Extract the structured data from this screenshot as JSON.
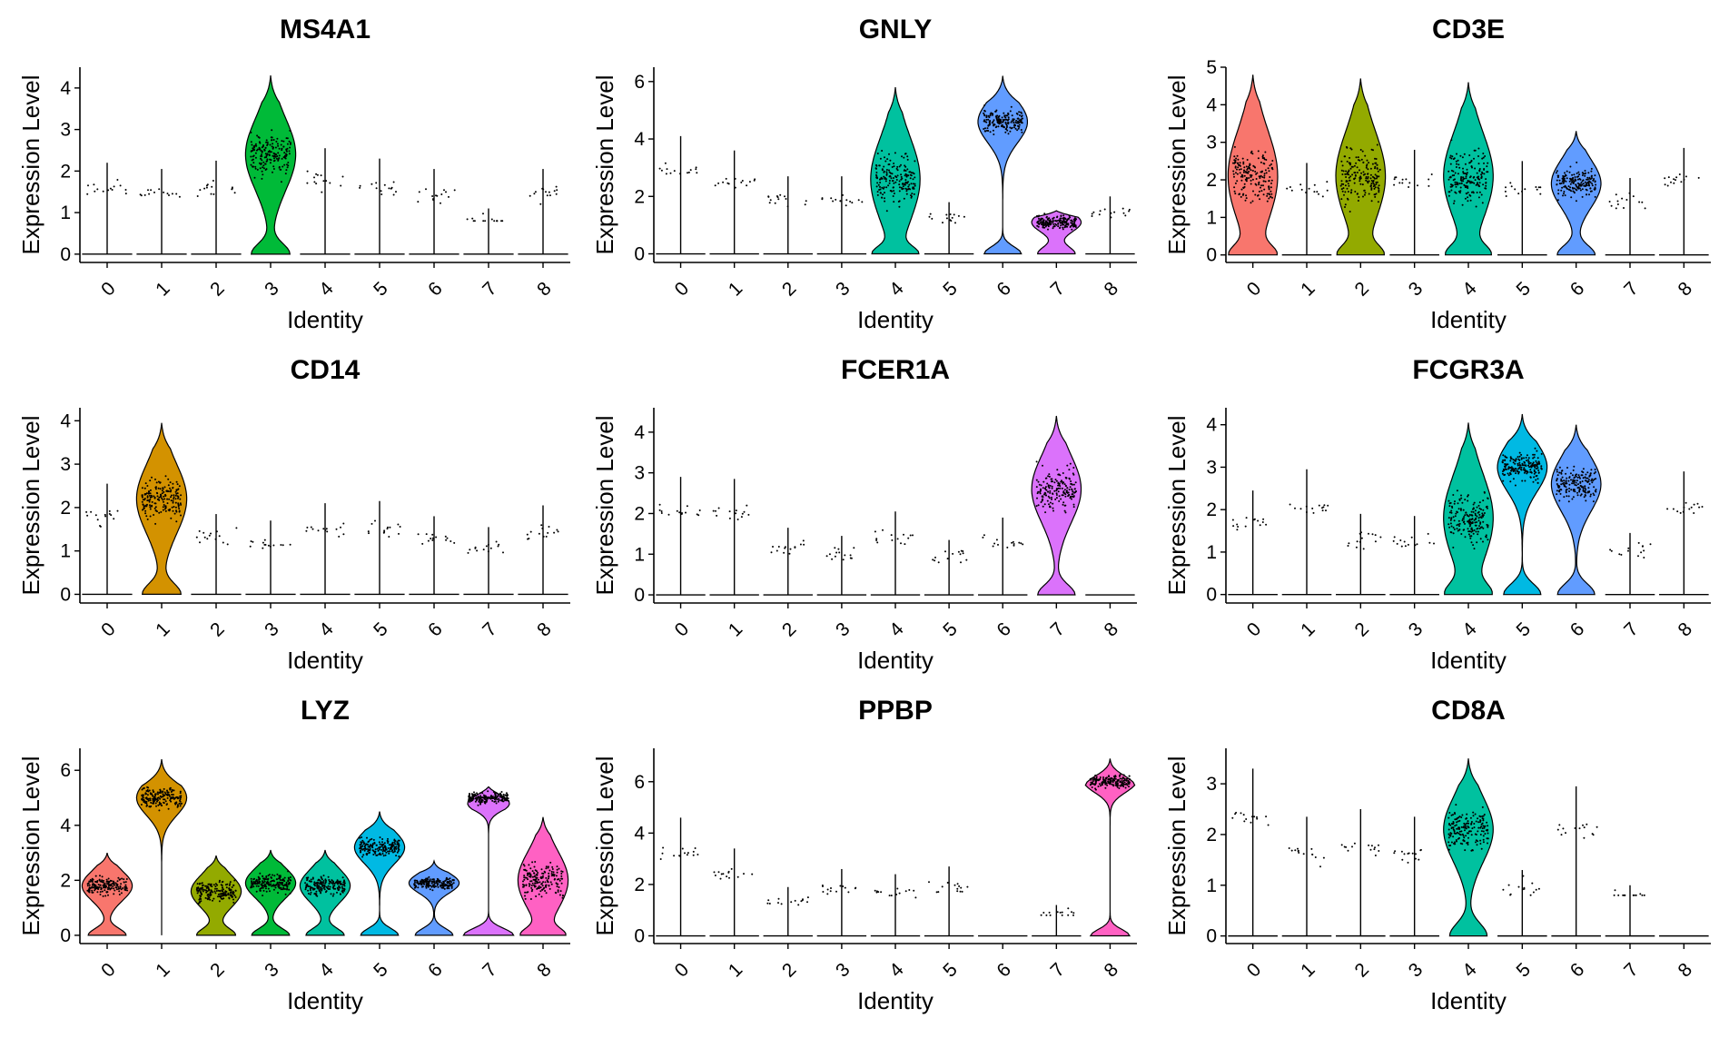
{
  "chart_data": [
    {
      "type": "violin",
      "title": "MS4A1",
      "xlabel": "Identity",
      "ylabel": "Expression Level",
      "categories": [
        "0",
        "1",
        "2",
        "3",
        "4",
        "5",
        "6",
        "7",
        "8"
      ],
      "yticks": [
        0,
        1,
        2,
        3,
        4
      ],
      "ylim": [
        -0.2,
        4.5
      ],
      "max_values": [
        2.2,
        2.05,
        2.25,
        4.3,
        2.55,
        2.3,
        2.05,
        1.1,
        2.05
      ],
      "median_values": [
        0,
        0,
        0,
        2.4,
        0,
        0,
        0,
        0,
        0
      ],
      "dense": [
        3
      ]
    },
    {
      "type": "violin",
      "title": "GNLY",
      "xlabel": "Identity",
      "ylabel": "Expression Level",
      "categories": [
        "0",
        "1",
        "2",
        "3",
        "4",
        "5",
        "6",
        "7",
        "8"
      ],
      "yticks": [
        0,
        2,
        4,
        6
      ],
      "ylim": [
        -0.3,
        6.5
      ],
      "max_values": [
        4.1,
        3.6,
        2.7,
        2.7,
        5.8,
        1.8,
        6.2,
        1.5,
        2.0
      ],
      "median_values": [
        0,
        0,
        0,
        0,
        2.6,
        0,
        4.6,
        1.1,
        0
      ],
      "dense": [
        4,
        6,
        7
      ]
    },
    {
      "type": "violin",
      "title": "CD3E",
      "xlabel": "Identity",
      "ylabel": "Expression Level",
      "categories": [
        "0",
        "1",
        "2",
        "3",
        "4",
        "5",
        "6",
        "7",
        "8"
      ],
      "yticks": [
        0,
        1,
        2,
        3,
        4,
        5
      ],
      "ylim": [
        -0.2,
        5.0
      ],
      "max_values": [
        4.8,
        2.45,
        4.7,
        2.8,
        4.6,
        2.5,
        3.3,
        2.05,
        2.85
      ],
      "median_values": [
        2.1,
        0,
        2.1,
        0,
        2.1,
        0,
        1.9,
        0,
        0
      ],
      "dense": [
        0,
        2,
        4,
        6
      ]
    },
    {
      "type": "violin",
      "title": "CD14",
      "xlabel": "Identity",
      "ylabel": "Expression Level",
      "categories": [
        "0",
        "1",
        "2",
        "3",
        "4",
        "5",
        "6",
        "7",
        "8"
      ],
      "yticks": [
        0,
        1,
        2,
        3,
        4
      ],
      "ylim": [
        -0.2,
        4.3
      ],
      "max_values": [
        2.55,
        3.95,
        1.85,
        1.7,
        2.1,
        2.15,
        1.8,
        1.55,
        2.05
      ],
      "median_values": [
        0,
        2.2,
        0,
        0,
        0,
        0,
        0,
        0,
        0
      ],
      "dense": [
        1
      ]
    },
    {
      "type": "violin",
      "title": "FCER1A",
      "xlabel": "Identity",
      "ylabel": "Expression Level",
      "categories": [
        "0",
        "1",
        "2",
        "3",
        "4",
        "5",
        "6",
        "7",
        "8"
      ],
      "yticks": [
        0,
        1,
        2,
        3,
        4
      ],
      "ylim": [
        -0.2,
        4.6
      ],
      "max_values": [
        2.9,
        2.85,
        1.65,
        1.45,
        2.05,
        1.35,
        1.9,
        4.4,
        0
      ],
      "median_values": [
        0,
        0,
        0,
        0,
        0,
        0,
        0,
        2.6,
        0
      ],
      "dense": [
        7
      ]
    },
    {
      "type": "violin",
      "title": "FCGR3A",
      "xlabel": "Identity",
      "ylabel": "Expression Level",
      "categories": [
        "0",
        "1",
        "2",
        "3",
        "4",
        "5",
        "6",
        "7",
        "8"
      ],
      "yticks": [
        0,
        1,
        2,
        3,
        4
      ],
      "ylim": [
        -0.2,
        4.4
      ],
      "max_values": [
        2.45,
        2.95,
        1.9,
        1.85,
        4.05,
        4.25,
        4.0,
        1.45,
        2.9
      ],
      "median_values": [
        0,
        0,
        0,
        0,
        1.8,
        3.0,
        2.6,
        0,
        0
      ],
      "dense": [
        4,
        5,
        6
      ]
    },
    {
      "type": "violin",
      "title": "LYZ",
      "xlabel": "Identity",
      "ylabel": "Expression Level",
      "categories": [
        "0",
        "1",
        "2",
        "3",
        "4",
        "5",
        "6",
        "7",
        "8"
      ],
      "yticks": [
        0,
        2,
        4,
        6
      ],
      "ylim": [
        -0.3,
        6.8
      ],
      "max_values": [
        3.0,
        6.4,
        2.9,
        3.1,
        3.1,
        4.5,
        2.7,
        5.4,
        4.3
      ],
      "median_values": [
        1.8,
        5.0,
        1.6,
        1.9,
        1.8,
        3.2,
        1.9,
        5.0,
        2.0
      ],
      "dense": [
        0,
        1,
        2,
        3,
        4,
        5,
        6,
        7,
        8
      ]
    },
    {
      "type": "violin",
      "title": "PPBP",
      "xlabel": "Identity",
      "ylabel": "Expression Level",
      "categories": [
        "0",
        "1",
        "2",
        "3",
        "4",
        "5",
        "6",
        "7",
        "8"
      ],
      "yticks": [
        0,
        2,
        4,
        6
      ],
      "ylim": [
        -0.3,
        7.3
      ],
      "max_values": [
        4.6,
        3.4,
        1.9,
        2.6,
        2.4,
        2.7,
        0,
        1.2,
        6.9
      ],
      "median_values": [
        0,
        0,
        0,
        0,
        0,
        0,
        0,
        0,
        6.0
      ],
      "dense": [
        8
      ]
    },
    {
      "type": "violin",
      "title": "CD8A",
      "xlabel": "Identity",
      "ylabel": "Expression Level",
      "categories": [
        "0",
        "1",
        "2",
        "3",
        "4",
        "5",
        "6",
        "7",
        "8"
      ],
      "yticks": [
        0,
        1,
        2,
        3
      ],
      "ylim": [
        -0.15,
        3.7
      ],
      "max_values": [
        3.3,
        2.35,
        2.5,
        2.35,
        3.5,
        1.3,
        2.95,
        1.0,
        0
      ],
      "median_values": [
        0,
        0,
        0,
        0,
        2.1,
        0,
        0,
        0,
        0
      ],
      "dense": [
        4
      ]
    }
  ],
  "colors": [
    "#F8766D",
    "#D39200",
    "#93AA00",
    "#00BA38",
    "#00C19F",
    "#00B9E3",
    "#619CFF",
    "#DB72FB",
    "#FF61C3"
  ]
}
